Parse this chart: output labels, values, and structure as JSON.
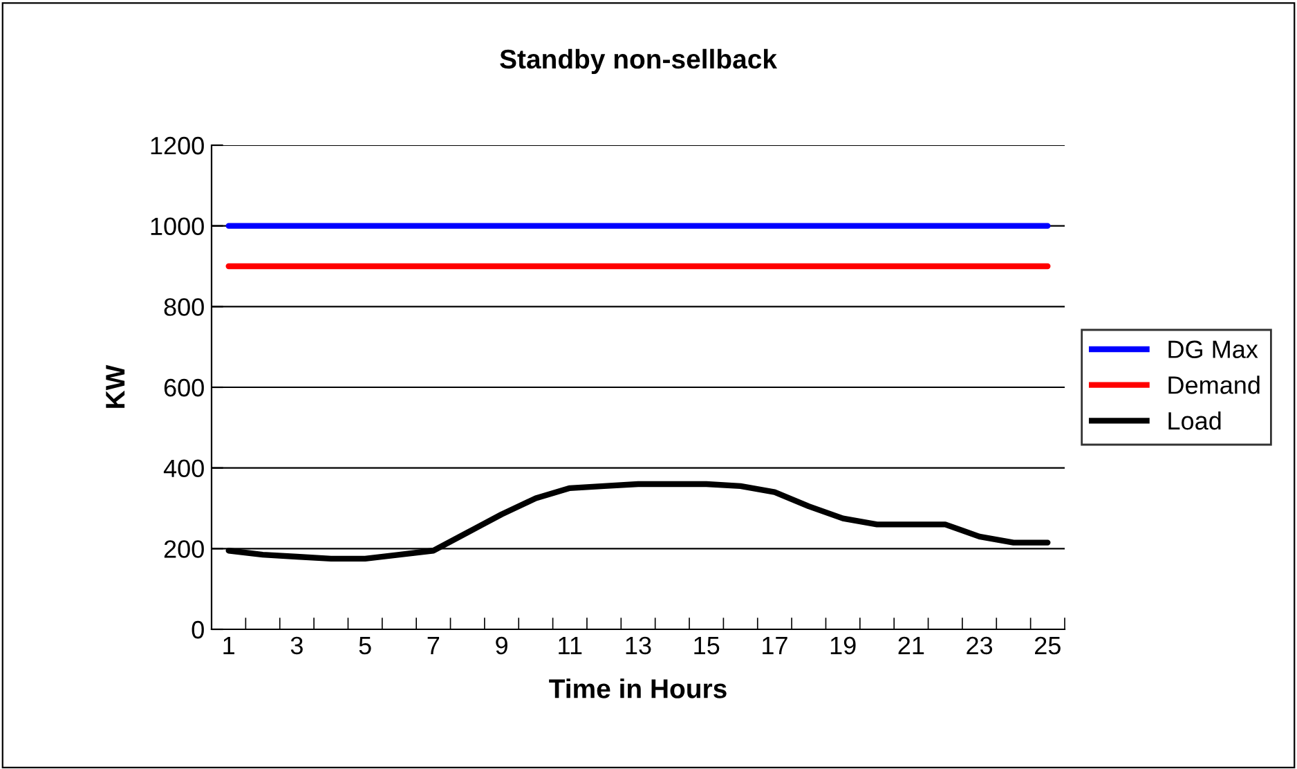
{
  "chart_data": {
    "type": "line",
    "title": "Standby non-sellback",
    "xlabel": "Time in Hours",
    "ylabel": "KW",
    "categories": [
      "1",
      null,
      "3",
      null,
      "5",
      null,
      "7",
      null,
      "9",
      null,
      "11",
      null,
      "13",
      null,
      "15",
      null,
      "17",
      null,
      "19",
      null,
      "21",
      null,
      "23",
      null,
      "25"
    ],
    "series": [
      {
        "name": "DG Max",
        "color": "#0000ff",
        "values": [
          1000,
          1000,
          1000,
          1000,
          1000,
          1000,
          1000,
          1000,
          1000,
          1000,
          1000,
          1000,
          1000,
          1000,
          1000,
          1000,
          1000,
          1000,
          1000,
          1000,
          1000,
          1000,
          1000,
          1000,
          1000
        ]
      },
      {
        "name": "Demand",
        "color": "#ff0000",
        "values": [
          900,
          900,
          900,
          900,
          900,
          900,
          900,
          900,
          900,
          900,
          900,
          900,
          900,
          900,
          900,
          900,
          900,
          900,
          900,
          900,
          900,
          900,
          900,
          900,
          900
        ]
      },
      {
        "name": "Load",
        "color": "#000000",
        "values": [
          195,
          185,
          180,
          175,
          175,
          185,
          195,
          240,
          285,
          325,
          350,
          355,
          360,
          360,
          360,
          355,
          340,
          305,
          275,
          260,
          260,
          260,
          230,
          215,
          215
        ]
      }
    ],
    "ylim": [
      0,
      1200
    ],
    "yticks": [
      0,
      200,
      400,
      600,
      800,
      1000,
      1200
    ],
    "grid": "y",
    "legend": "right",
    "marker": "none",
    "line_style": "solid"
  }
}
